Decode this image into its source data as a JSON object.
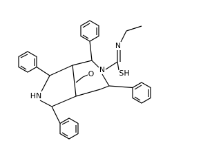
{
  "atoms": {
    "imine_n": "N",
    "thiol": "SH",
    "bridge_n": "N",
    "carbonyl_o": "O",
    "amine": "HN"
  }
}
